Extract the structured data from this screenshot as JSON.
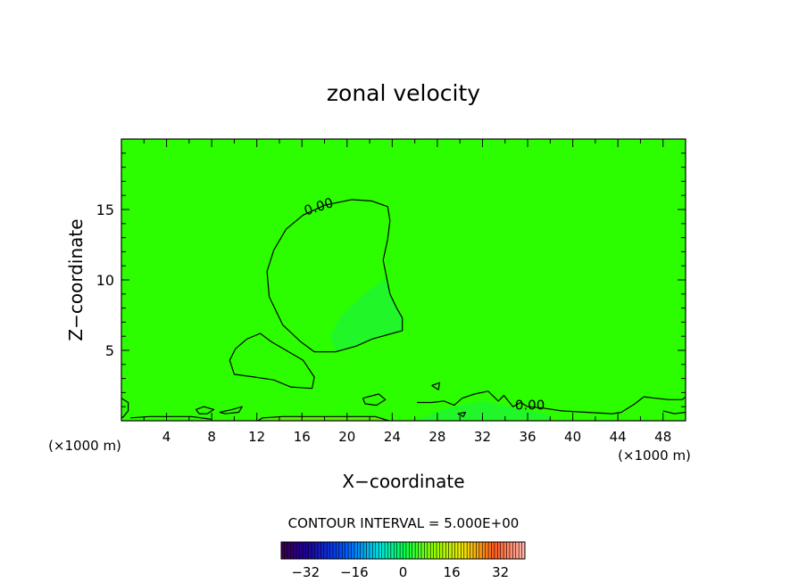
{
  "chart_data": {
    "type": "contour",
    "title": "zonal velocity",
    "xlabel": "X−coordinate",
    "ylabel": "Z−coordinate",
    "x_unit_left": "(×1000 m)",
    "x_unit_right": "(×1000 m)",
    "xlim": [
      0,
      50
    ],
    "ylim": [
      0,
      20
    ],
    "x_ticks": [
      4,
      8,
      12,
      16,
      20,
      24,
      28,
      32,
      36,
      40,
      44,
      48
    ],
    "y_ticks": [
      5,
      10,
      15
    ],
    "contour_interval_text": "CONTOUR INTERVAL = 5.000E+00",
    "contour_labels": [
      {
        "text": "0.00",
        "x": 17.6,
        "y": 14.9
      },
      {
        "text": "0.00",
        "x": 36.2,
        "y": 0.8
      }
    ],
    "colorbar": {
      "ticks": [
        -32,
        -16,
        0,
        16,
        32
      ],
      "tick_labels": [
        "−32",
        "−16",
        "0",
        "16",
        "32"
      ],
      "min": -40,
      "max": 40
    },
    "fill_colors": {
      "main": "#2cfe00",
      "accent_green": "#1df23a",
      "near_ground": "#6ee80e"
    },
    "contours": [
      [
        [
          20.4,
          15.7
        ],
        [
          22.2,
          15.6
        ],
        [
          23.6,
          15.2
        ],
        [
          23.8,
          14.2
        ],
        [
          23.6,
          12.9
        ],
        [
          23.2,
          11.4
        ],
        [
          23.5,
          10.2
        ],
        [
          23.8,
          9.0
        ],
        [
          24.4,
          8.0
        ],
        [
          24.9,
          7.3
        ],
        [
          24.9,
          6.4
        ],
        [
          24.0,
          6.2
        ],
        [
          22.2,
          5.8
        ],
        [
          20.8,
          5.3
        ],
        [
          19.0,
          4.9
        ],
        [
          17.1,
          4.9
        ],
        [
          15.9,
          5.6
        ],
        [
          14.3,
          6.8
        ],
        [
          13.1,
          8.8
        ],
        [
          12.9,
          10.6
        ],
        [
          13.5,
          12.1
        ],
        [
          14.6,
          13.6
        ],
        [
          16.1,
          14.6
        ],
        [
          18.0,
          15.3
        ],
        [
          20.4,
          15.7
        ]
      ],
      [
        [
          11.1,
          5.8
        ],
        [
          12.3,
          6.2
        ],
        [
          13.3,
          5.6
        ],
        [
          14.6,
          5.0
        ],
        [
          16.1,
          4.3
        ],
        [
          17.1,
          3.1
        ],
        [
          16.9,
          2.3
        ],
        [
          15.0,
          2.4
        ],
        [
          13.5,
          2.9
        ],
        [
          11.8,
          3.1
        ],
        [
          10.0,
          3.3
        ],
        [
          9.6,
          4.3
        ],
        [
          10.1,
          5.1
        ],
        [
          11.1,
          5.8
        ]
      ],
      [
        [
          0.0,
          1.6
        ],
        [
          0.6,
          1.3
        ],
        [
          0.6,
          0.7
        ],
        [
          0.2,
          0.3
        ],
        [
          0.0,
          0.2
        ]
      ],
      [
        [
          0.8,
          0.2
        ],
        [
          2.5,
          0.3
        ],
        [
          4.5,
          0.3
        ],
        [
          6.2,
          0.3
        ],
        [
          8.0,
          0.1
        ]
      ],
      [
        [
          6.6,
          0.8
        ],
        [
          7.3,
          1.0
        ],
        [
          8.2,
          0.8
        ],
        [
          7.6,
          0.5
        ],
        [
          6.9,
          0.5
        ],
        [
          6.6,
          0.8
        ]
      ],
      [
        [
          8.7,
          0.6
        ],
        [
          9.8,
          0.8
        ],
        [
          10.7,
          1.0
        ],
        [
          10.4,
          0.6
        ],
        [
          9.2,
          0.5
        ],
        [
          8.7,
          0.6
        ]
      ],
      [
        [
          12.1,
          0.0
        ],
        [
          12.5,
          0.2
        ],
        [
          14.3,
          0.3
        ],
        [
          16.5,
          0.3
        ],
        [
          18.5,
          0.3
        ],
        [
          20.5,
          0.3
        ],
        [
          22.5,
          0.3
        ],
        [
          23.7,
          0.0
        ]
      ],
      [
        [
          21.4,
          1.6
        ],
        [
          22.8,
          1.9
        ],
        [
          23.4,
          1.5
        ],
        [
          22.6,
          1.1
        ],
        [
          21.6,
          1.2
        ],
        [
          21.4,
          1.6
        ]
      ],
      [
        [
          27.5,
          2.5
        ],
        [
          28.2,
          2.7
        ],
        [
          28.1,
          2.2
        ],
        [
          27.5,
          2.5
        ]
      ],
      [
        [
          26.2,
          1.3
        ],
        [
          27.5,
          1.3
        ],
        [
          28.6,
          1.4
        ],
        [
          29.5,
          1.1
        ],
        [
          30.2,
          1.6
        ],
        [
          31.3,
          1.9
        ],
        [
          32.5,
          2.1
        ],
        [
          33.4,
          1.4
        ],
        [
          33.9,
          1.8
        ],
        [
          34.7,
          1.0
        ],
        [
          35.4,
          1.3
        ],
        [
          36.0,
          1.0
        ],
        [
          37.4,
          0.9
        ],
        [
          39.0,
          0.7
        ],
        [
          41.2,
          0.6
        ],
        [
          43.5,
          0.5
        ],
        [
          44.3,
          0.6
        ],
        [
          45.5,
          1.2
        ],
        [
          46.3,
          1.7
        ],
        [
          47.3,
          1.6
        ],
        [
          48.5,
          1.5
        ],
        [
          49.7,
          1.5
        ],
        [
          50.0,
          1.7
        ]
      ],
      [
        [
          48.0,
          0.7
        ],
        [
          49.0,
          0.5
        ],
        [
          50.0,
          0.6
        ]
      ],
      [
        [
          29.8,
          0.5
        ],
        [
          30.5,
          0.6
        ],
        [
          30.3,
          0.3
        ],
        [
          29.8,
          0.5
        ]
      ]
    ],
    "tinted_regions": [
      {
        "color": "accent_green",
        "polygon": [
          [
            19.0,
            4.9
          ],
          [
            20.8,
            5.3
          ],
          [
            22.2,
            5.8
          ],
          [
            24.0,
            6.2
          ],
          [
            24.9,
            6.4
          ],
          [
            24.9,
            7.3
          ],
          [
            24.4,
            8.0
          ],
          [
            23.8,
            9.0
          ],
          [
            23.5,
            10.2
          ],
          [
            21.5,
            9.0
          ],
          [
            19.5,
            7.5
          ],
          [
            18.5,
            6.0
          ]
        ]
      },
      {
        "color": "accent_green",
        "polygon": [
          [
            26.0,
            0.1
          ],
          [
            29.0,
            0.9
          ],
          [
            32.0,
            1.4
          ],
          [
            35.0,
            0.9
          ],
          [
            38.0,
            0.4
          ],
          [
            38.0,
            0.1
          ]
        ]
      },
      {
        "color": "near_ground",
        "polygon": [
          [
            12.5,
            0.0
          ],
          [
            12.5,
            0.2
          ],
          [
            14.3,
            0.3
          ],
          [
            16.5,
            0.4
          ],
          [
            18.5,
            0.4
          ],
          [
            20.5,
            0.3
          ],
          [
            22.5,
            0.3
          ],
          [
            23.7,
            0.0
          ]
        ]
      }
    ]
  }
}
